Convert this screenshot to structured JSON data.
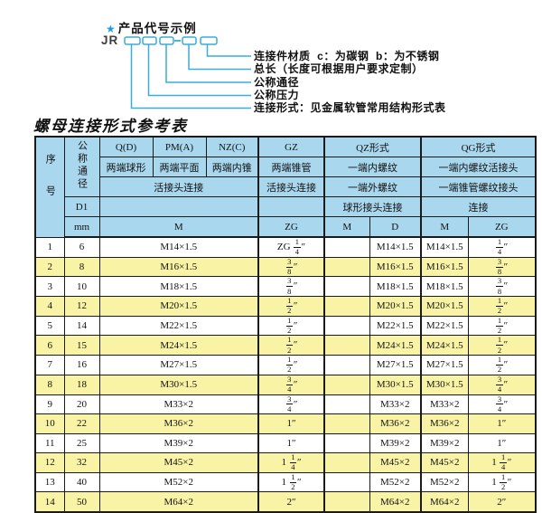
{
  "colors": {
    "diagram_blue": "#3aabdd",
    "star_blue": "#1f9ed9",
    "header_bg": "#a9d8ee",
    "row_alt_bg": "#f9f3a5"
  },
  "diagram": {
    "star_icon": "★",
    "heading": "产品代号示例",
    "code_prefix": "JR",
    "labels": [
      "连接件材质  c：为碳钢  b：为不锈钢",
      "总长（长度可根据用户要求定制）",
      "公称通径",
      "公称压力",
      "连接形式：见金属软管常用结构形式表"
    ]
  },
  "table": {
    "title": "螺母连接形式参考表",
    "header": {
      "seq": "序号",
      "dn": "公称通径",
      "d1": "D1",
      "unit": "mm",
      "col_q": "Q(D)",
      "col_pm": "PM(A)",
      "col_nz": "NZ(C)",
      "col_gz": "GZ",
      "col_qz": "QZ形式",
      "col_qg": "QG形式",
      "q_desc": "两端球形",
      "pm_desc": "两端平面",
      "nz_desc": "两端内锥",
      "gz_desc": "两端锥管",
      "qz_desc1": "一端内螺纹",
      "qg_desc1": "一端内螺纹活接头",
      "union_conn": "活接头连接",
      "gz_conn": "活接头连接",
      "qz_desc2": "一端外螺纹",
      "qg_desc2": "一端锥管螺纹接头",
      "qz_conn": "球形接头连接",
      "qg_conn": "连接",
      "m_main": "M",
      "zg_main": "ZG",
      "qz_m": "M",
      "qz_d": "D",
      "qg_m": "M",
      "qg_zg": "ZG"
    },
    "rows": [
      {
        "no": "1",
        "dn": "6",
        "m": "M14×1.5",
        "zg": "ZG 1/4″",
        "qz_m": "",
        "qz_d": "M14×1.5",
        "qg_m": "M14×1.5",
        "qg_zg": "1/4″"
      },
      {
        "no": "2",
        "dn": "8",
        "m": "M16×1.5",
        "zg": "3/8″",
        "qz_m": "",
        "qz_d": "M16×1.5",
        "qg_m": "M16×1.5",
        "qg_zg": "3/8″"
      },
      {
        "no": "3",
        "dn": "10",
        "m": "M18×1.5",
        "zg": "3/8″",
        "qz_m": "",
        "qz_d": "M18×1.5",
        "qg_m": "M18×1.5",
        "qg_zg": "3/8″"
      },
      {
        "no": "4",
        "dn": "12",
        "m": "M20×1.5",
        "zg": "1/2″",
        "qz_m": "",
        "qz_d": "M20×1.5",
        "qg_m": "M20×1.5",
        "qg_zg": "1/2″"
      },
      {
        "no": "5",
        "dn": "14",
        "m": "M22×1.5",
        "zg": "1/2″",
        "qz_m": "",
        "qz_d": "M22×1.5",
        "qg_m": "M22×1.5",
        "qg_zg": "1/2″"
      },
      {
        "no": "6",
        "dn": "15",
        "m": "M24×1.5",
        "zg": "1/2″",
        "qz_m": "",
        "qz_d": "M24×1.5",
        "qg_m": "M24×1.5",
        "qg_zg": "1/2″"
      },
      {
        "no": "7",
        "dn": "16",
        "m": "M27×1.5",
        "zg": "1/2″",
        "qz_m": "",
        "qz_d": "M27×1.5",
        "qg_m": "M27×1.5",
        "qg_zg": "1/2″"
      },
      {
        "no": "8",
        "dn": "18",
        "m": "M30×1.5",
        "zg": "3/4″",
        "qz_m": "",
        "qz_d": "M30×1.5",
        "qg_m": "M30×1.5",
        "qg_zg": "3/4″"
      },
      {
        "no": "9",
        "dn": "20",
        "m": "M33×2",
        "zg": "3/4″",
        "qz_m": "",
        "qz_d": "M33×2",
        "qg_m": "M33×2",
        "qg_zg": "3/4″"
      },
      {
        "no": "10",
        "dn": "22",
        "m": "M36×2",
        "zg": "1″",
        "qz_m": "",
        "qz_d": "M36×2",
        "qg_m": "M36×2",
        "qg_zg": "1″"
      },
      {
        "no": "11",
        "dn": "25",
        "m": "M39×2",
        "zg": "1″",
        "qz_m": "",
        "qz_d": "M39×2",
        "qg_m": "M39×2",
        "qg_zg": "1″"
      },
      {
        "no": "12",
        "dn": "32",
        "m": "M45×2",
        "zg": "1 1/4″",
        "qz_m": "",
        "qz_d": "M45×2",
        "qg_m": "M45×2",
        "qg_zg": "1 1/4″"
      },
      {
        "no": "13",
        "dn": "40",
        "m": "M52×2",
        "zg": "1 1/2″",
        "qz_m": "",
        "qz_d": "M52×2",
        "qg_m": "M52×2",
        "qg_zg": "1 1/2″"
      },
      {
        "no": "14",
        "dn": "50",
        "m": "M64×2",
        "zg": "2″",
        "qz_m": "",
        "qz_d": "M64×2",
        "qg_m": "M64×2",
        "qg_zg": "2″"
      }
    ]
  }
}
